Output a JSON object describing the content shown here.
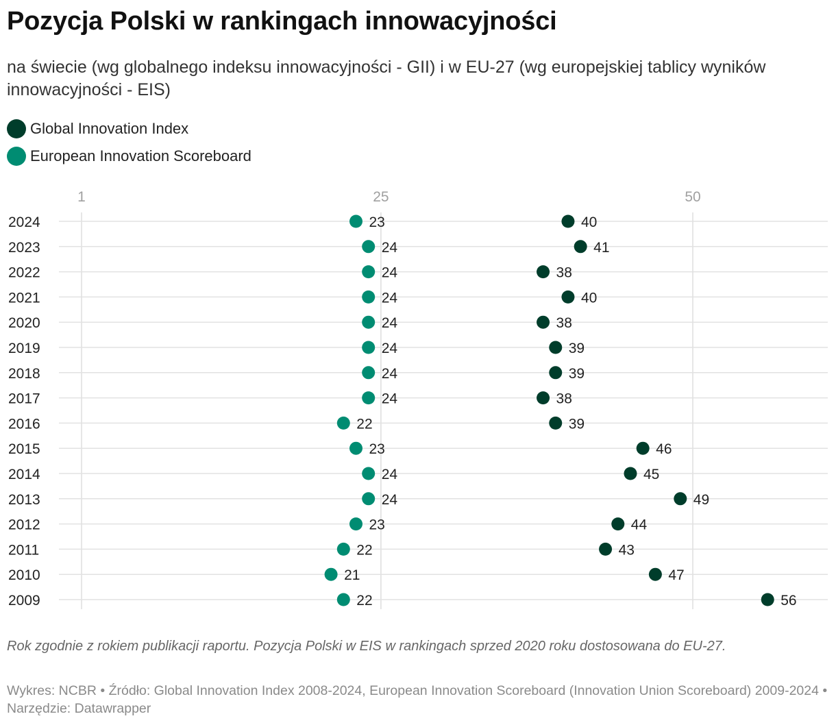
{
  "title": "Pozycja Polski w rankingach innowacyjności",
  "subtitle": "na świecie (wg globalnego indeksu innowacyjności - GII) i w EU-27 (wg europejskiej tablicy wyników innowacyjności - EIS)",
  "legend": [
    {
      "label": "Global Innovation Index",
      "color": "#003d2b"
    },
    {
      "label": "European Innovation Scoreboard",
      "color": "#008c72"
    }
  ],
  "chart_data": {
    "type": "scatter",
    "subtype": "dot-plot",
    "ticks": [
      1,
      25,
      50
    ],
    "tick_labels": [
      "1",
      "25",
      "50"
    ],
    "xlim": [
      1,
      61
    ],
    "categories": [
      "2024",
      "2023",
      "2022",
      "2021",
      "2020",
      "2019",
      "2018",
      "2017",
      "2016",
      "2015",
      "2014",
      "2013",
      "2012",
      "2011",
      "2010",
      "2009"
    ],
    "series": [
      {
        "name": "European Innovation Scoreboard",
        "color": "#008c72",
        "values": [
          23,
          24,
          24,
          24,
          24,
          24,
          24,
          24,
          22,
          23,
          24,
          24,
          23,
          22,
          21,
          22
        ]
      },
      {
        "name": "Global Innovation Index",
        "color": "#003d2b",
        "values": [
          40,
          41,
          38,
          40,
          38,
          39,
          39,
          38,
          39,
          46,
          45,
          49,
          44,
          43,
          47,
          56
        ]
      }
    ]
  },
  "note": "Rok zgodnie z rokiem publikacji raportu. Pozycja Polski w EIS w rankingach sprzed 2020 roku dostosowana do EU-27.",
  "source": "Wykres: NCBR • Źródło: Global Innovation Index 2008-2024, European Innovation Scoreboard (Innovation Union Scoreboard) 2009-2024 • Narzędzie: Datawrapper"
}
